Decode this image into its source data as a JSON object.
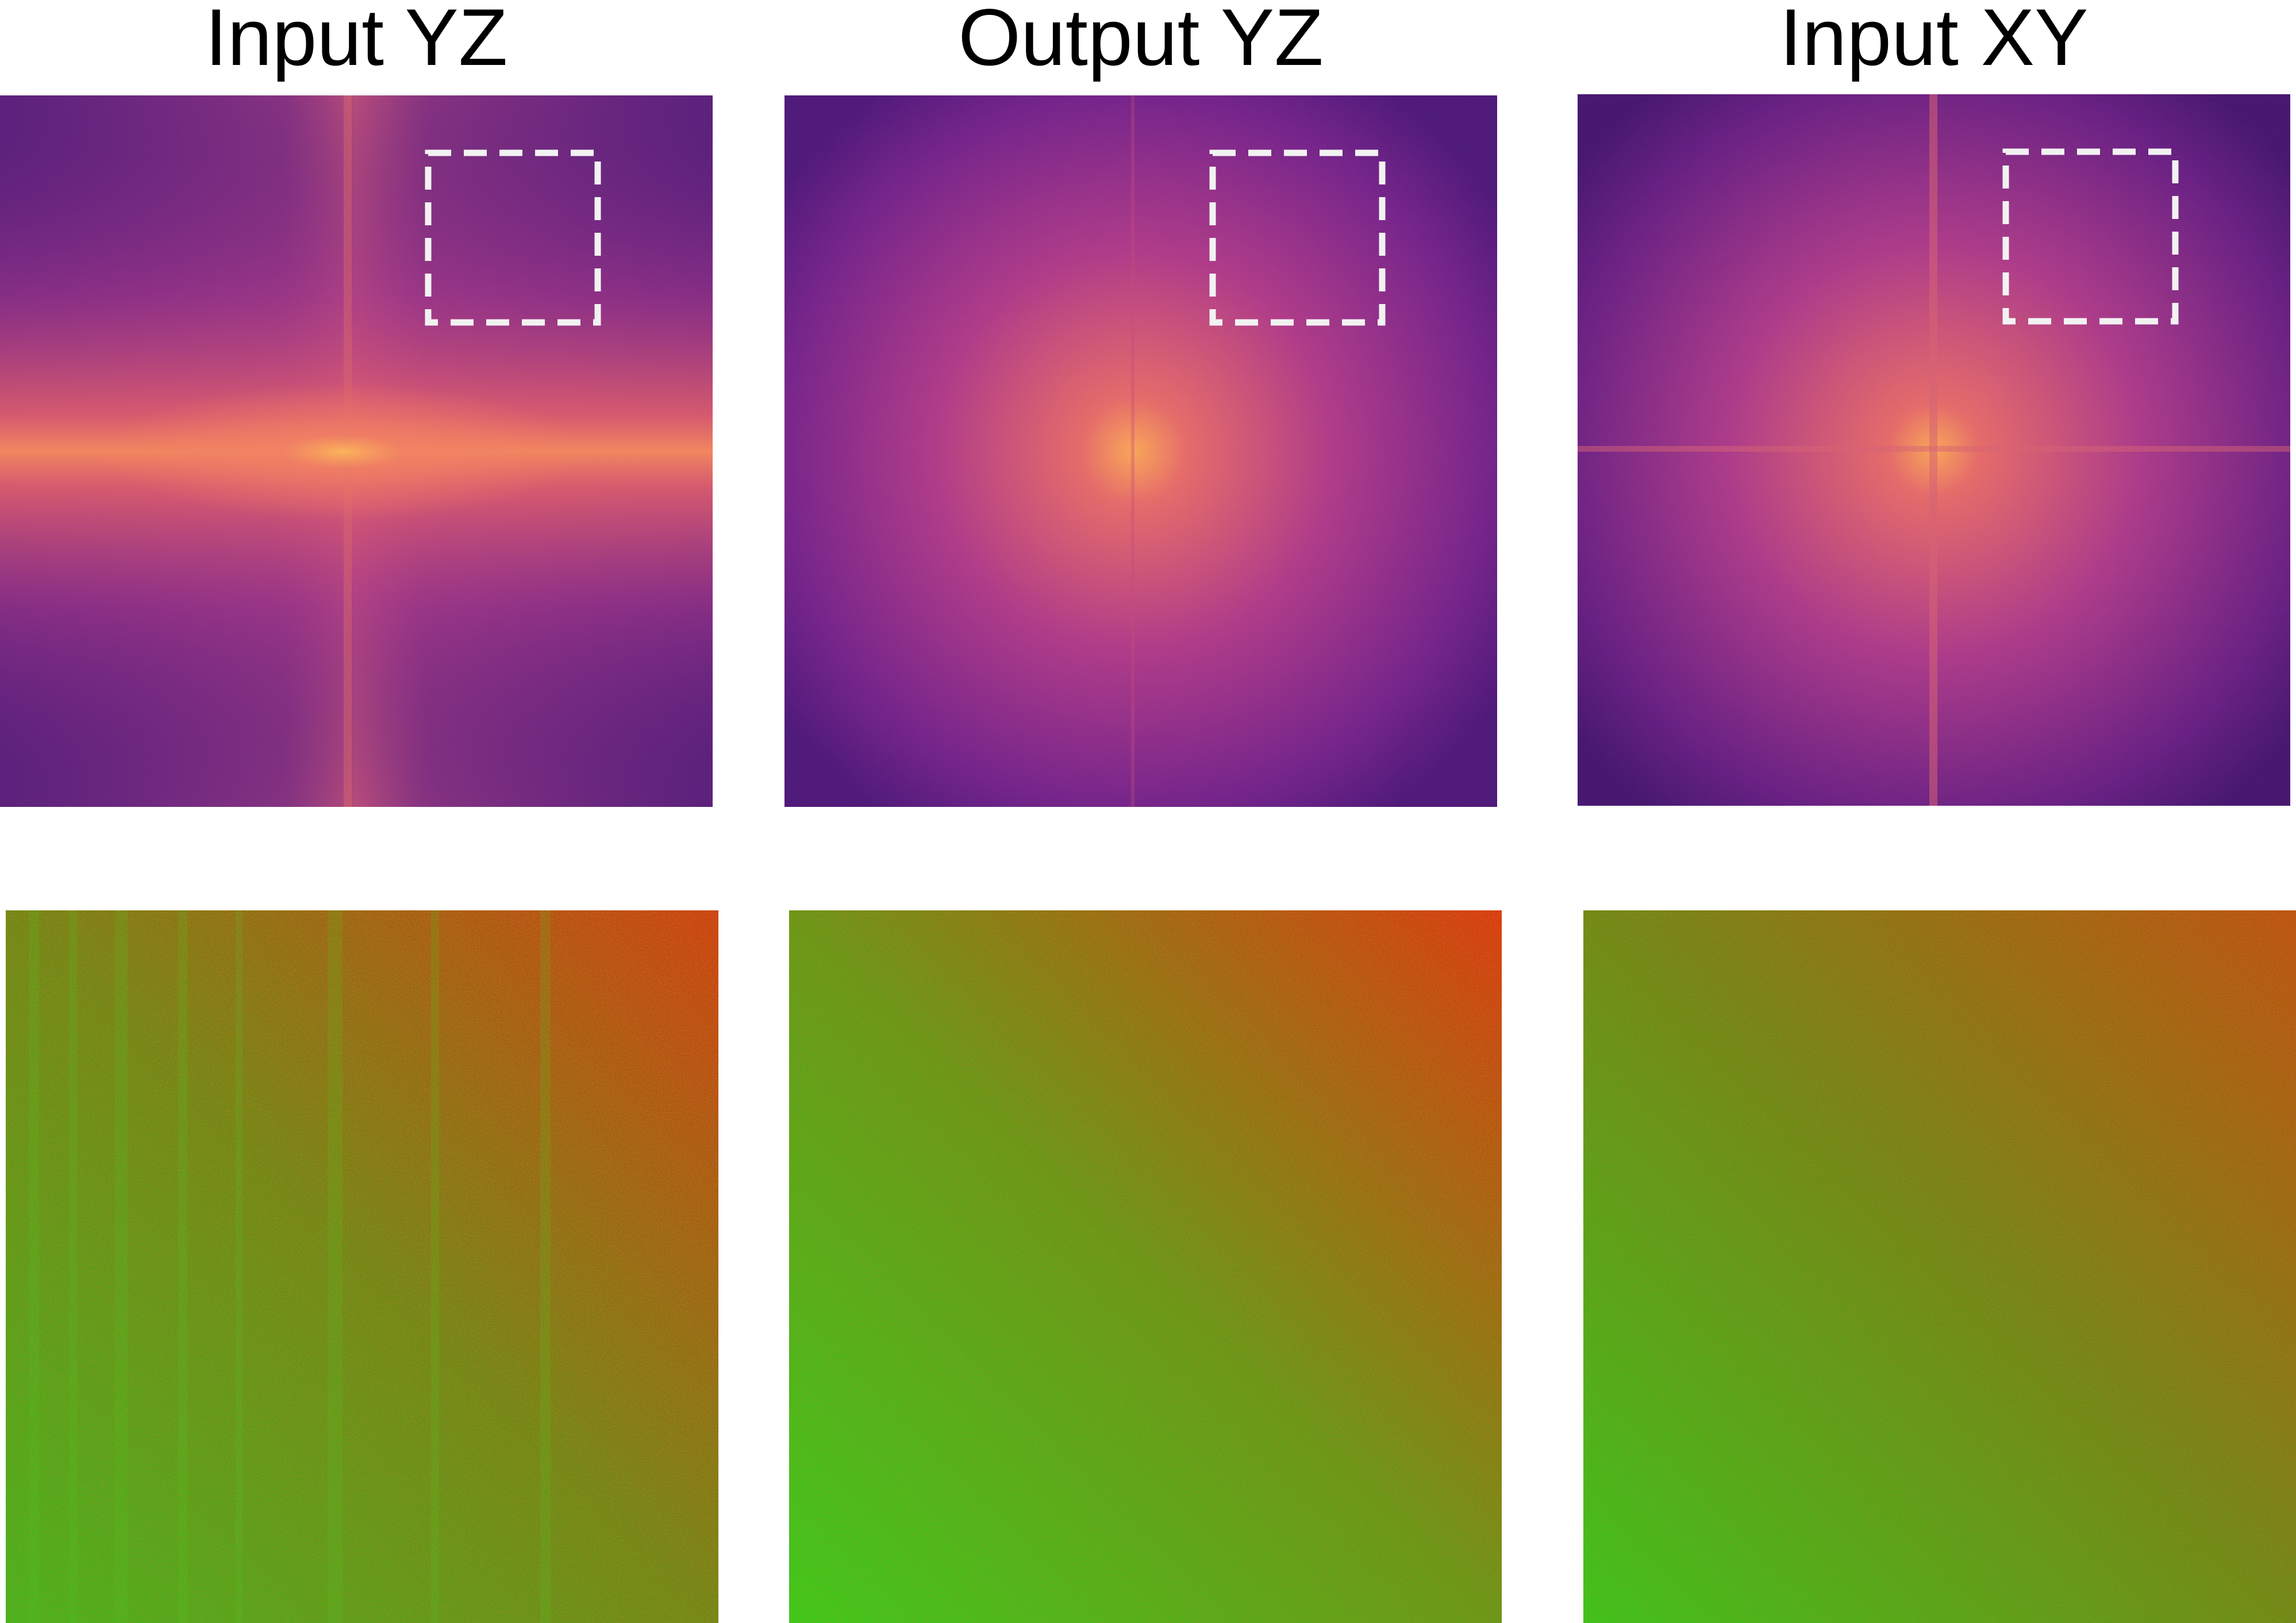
{
  "titles": {
    "input_yz": "Input YZ",
    "output_yz": "Output YZ",
    "input_xy": "Input XY"
  },
  "colors": {
    "background": "#ffffff",
    "title_text": "#000000",
    "roi_box": "#f2f2f2",
    "spectrum_dark": "#3f0a6e",
    "spectrum_mid": "#a5297d",
    "spectrum_bright": "#f8a24a",
    "zoom_green": "#2fcf18",
    "zoom_red": "#e0300c"
  }
}
